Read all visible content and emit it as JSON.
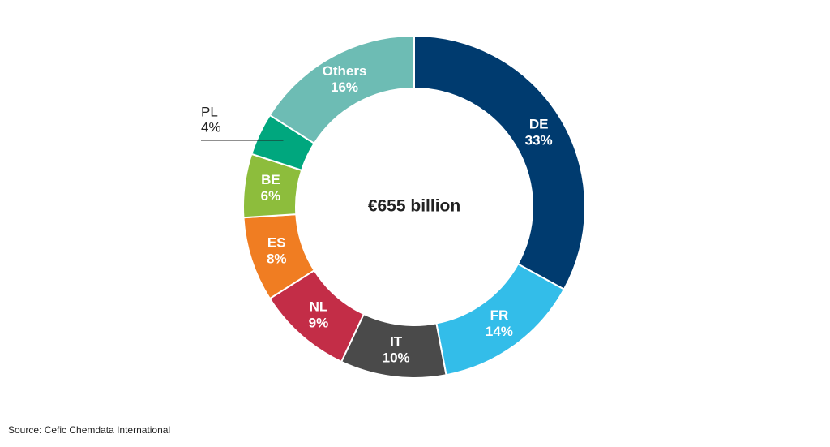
{
  "chart_data": {
    "type": "donut",
    "categories": [
      "DE",
      "FR",
      "IT",
      "NL",
      "ES",
      "BE",
      "PL",
      "Others"
    ],
    "values": [
      33,
      14,
      10,
      9,
      8,
      6,
      4,
      16
    ],
    "value_labels": [
      "33%",
      "14%",
      "10%",
      "9%",
      "8%",
      "6%",
      "4%",
      "16%"
    ],
    "colors": [
      "#003b6f",
      "#33bde9",
      "#4a4a4a",
      "#c32d47",
      "#f07d22",
      "#8dbd3c",
      "#00a77e",
      "#6dbcb4"
    ],
    "center_label": "€655 billion",
    "source": "Source: Cefic Chemdata International"
  }
}
